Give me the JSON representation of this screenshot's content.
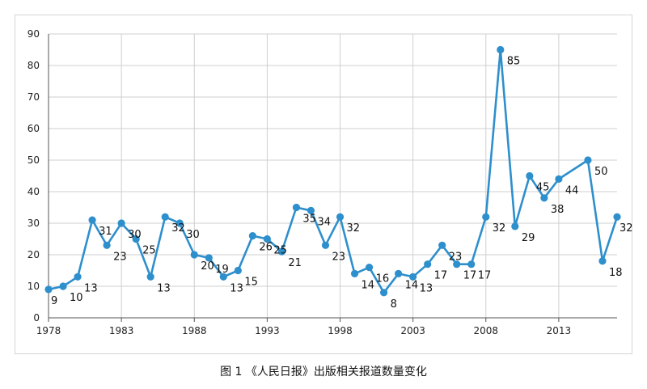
{
  "caption": "图 1 《人民日报》出版相关报道数量变化",
  "chart_data": {
    "type": "line",
    "title": "",
    "xlabel": "",
    "ylabel": "",
    "ylim": [
      0,
      90
    ],
    "yticks": [
      0,
      10,
      20,
      30,
      40,
      50,
      60,
      70,
      80,
      90
    ],
    "xticks": [
      1978,
      1983,
      1988,
      1993,
      1998,
      2003,
      2008,
      2013
    ],
    "xlim": [
      1978,
      2017
    ],
    "grid": true,
    "line_color": "#2e8fcd",
    "x": [
      1978,
      1979,
      1980,
      1981,
      1982,
      1983,
      1984,
      1985,
      1986,
      1987,
      1988,
      1989,
      1990,
      1991,
      1992,
      1993,
      1994,
      1995,
      1996,
      1997,
      1998,
      1999,
      2000,
      2001,
      2002,
      2003,
      2004,
      2005,
      2006,
      2007,
      2008,
      2009,
      2010,
      2011,
      2012,
      2013,
      2015,
      2016,
      2017
    ],
    "values": [
      9,
      10,
      13,
      31,
      23,
      30,
      25,
      13,
      32,
      30,
      20,
      19,
      13,
      15,
      26,
      25,
      21,
      35,
      34,
      23,
      32,
      14,
      16,
      8,
      14,
      13,
      17,
      23,
      17,
      17,
      32,
      85,
      29,
      45,
      38,
      44,
      50,
      18,
      32
    ],
    "labels": [
      "9",
      "10",
      "13",
      "31",
      "23",
      "30",
      "25",
      "13",
      "32",
      "30",
      "20",
      "19",
      "13",
      "15",
      "26",
      "25",
      "21",
      "35",
      "34",
      "23",
      "32",
      "14",
      "16",
      "8",
      "14",
      "13",
      "17",
      "23",
      "17",
      "17",
      "32",
      "85",
      "29",
      "45",
      "38",
      "44",
      "50",
      "18",
      "32"
    ]
  }
}
